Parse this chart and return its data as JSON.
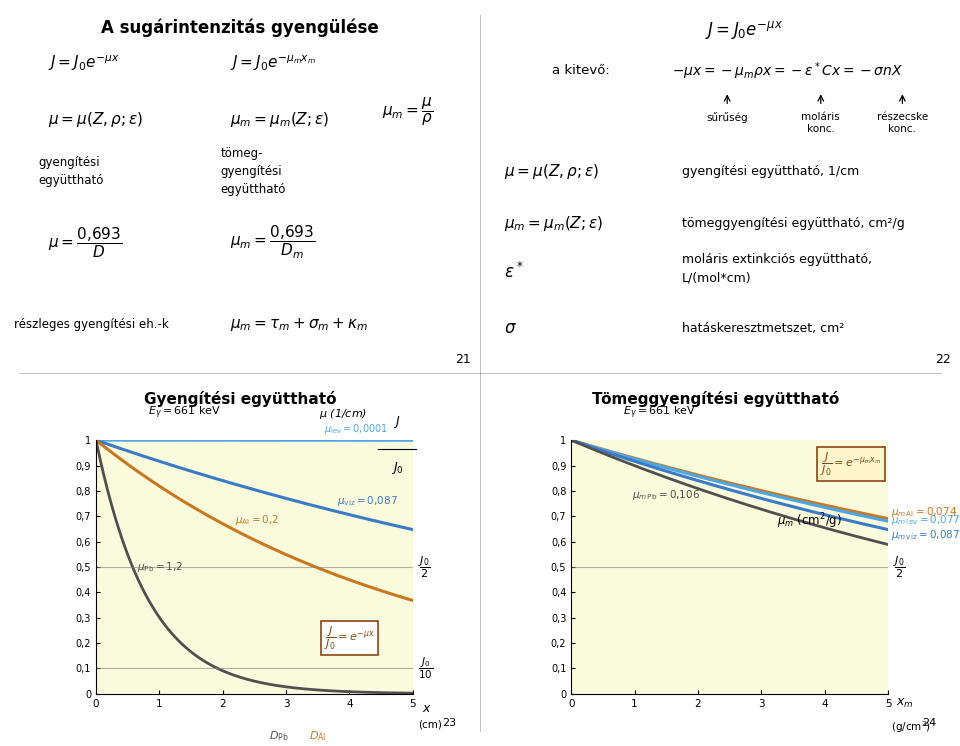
{
  "slide21_title": "A sugárintenzitás gyengülése",
  "slide23_title": "Gyengítési együttható",
  "slide24_title": "Tömeggyengítési együttható",
  "plot_bg_color": "#FAFADC",
  "mu_lev": 0.0001,
  "mu_viz": 0.087,
  "mu_Al": 0.2,
  "mu_Pb": 1.2,
  "mu_m_Al": 0.074,
  "mu_m_lev": 0.077,
  "mu_m_viz": 0.087,
  "mu_m_Pb": 0.106,
  "color_lev": "#4da6e8",
  "color_viz": "#3a7bc8",
  "color_Al": "#c87820",
  "color_Pb": "#505050"
}
